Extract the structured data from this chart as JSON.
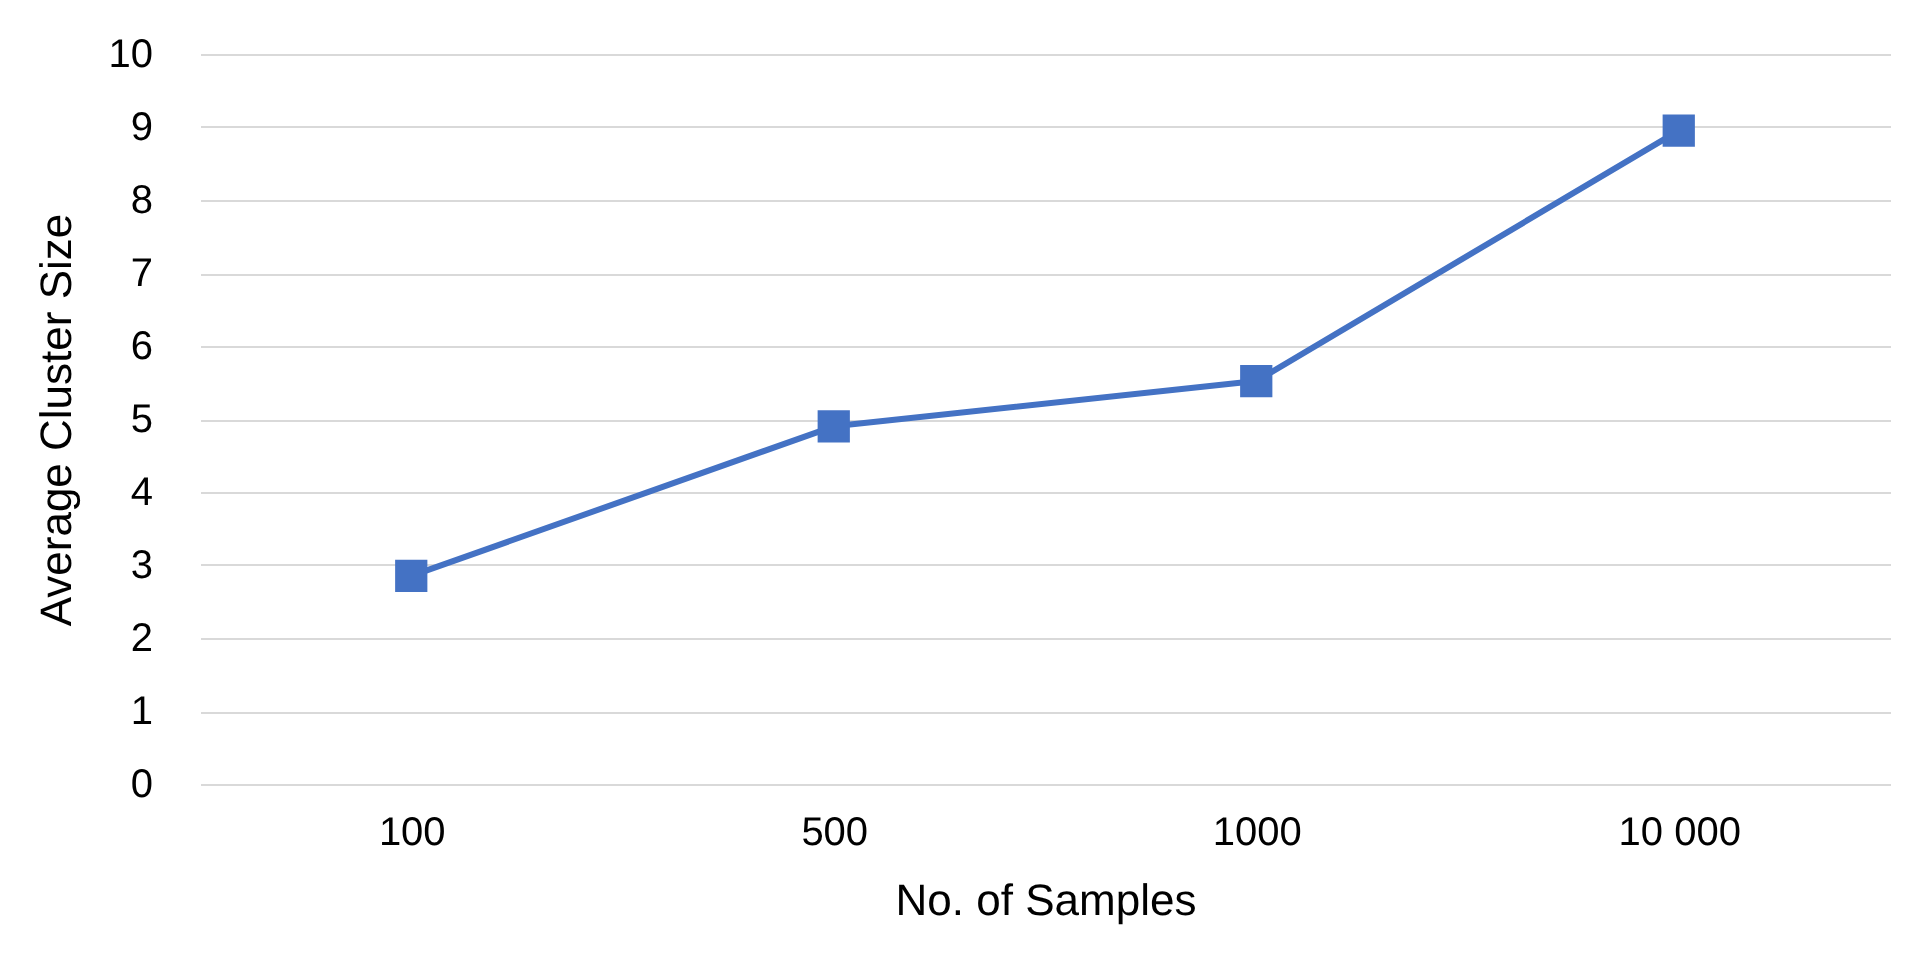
{
  "chart_data": {
    "type": "line",
    "xlabel": "No. of Samples",
    "ylabel": "Average Cluster Size",
    "categories": [
      "100",
      "500",
      "1000",
      "10 000"
    ],
    "series": [
      {
        "color": "#4472c4",
        "values": [
          2.85,
          4.9,
          5.52,
          8.95
        ]
      }
    ],
    "ylim": [
      0,
      10
    ],
    "yticks": [
      0,
      1,
      2,
      3,
      4,
      5,
      6,
      7,
      8,
      9,
      10
    ],
    "grid": "y",
    "marker": "square",
    "line_style": "solid",
    "legend": false
  }
}
